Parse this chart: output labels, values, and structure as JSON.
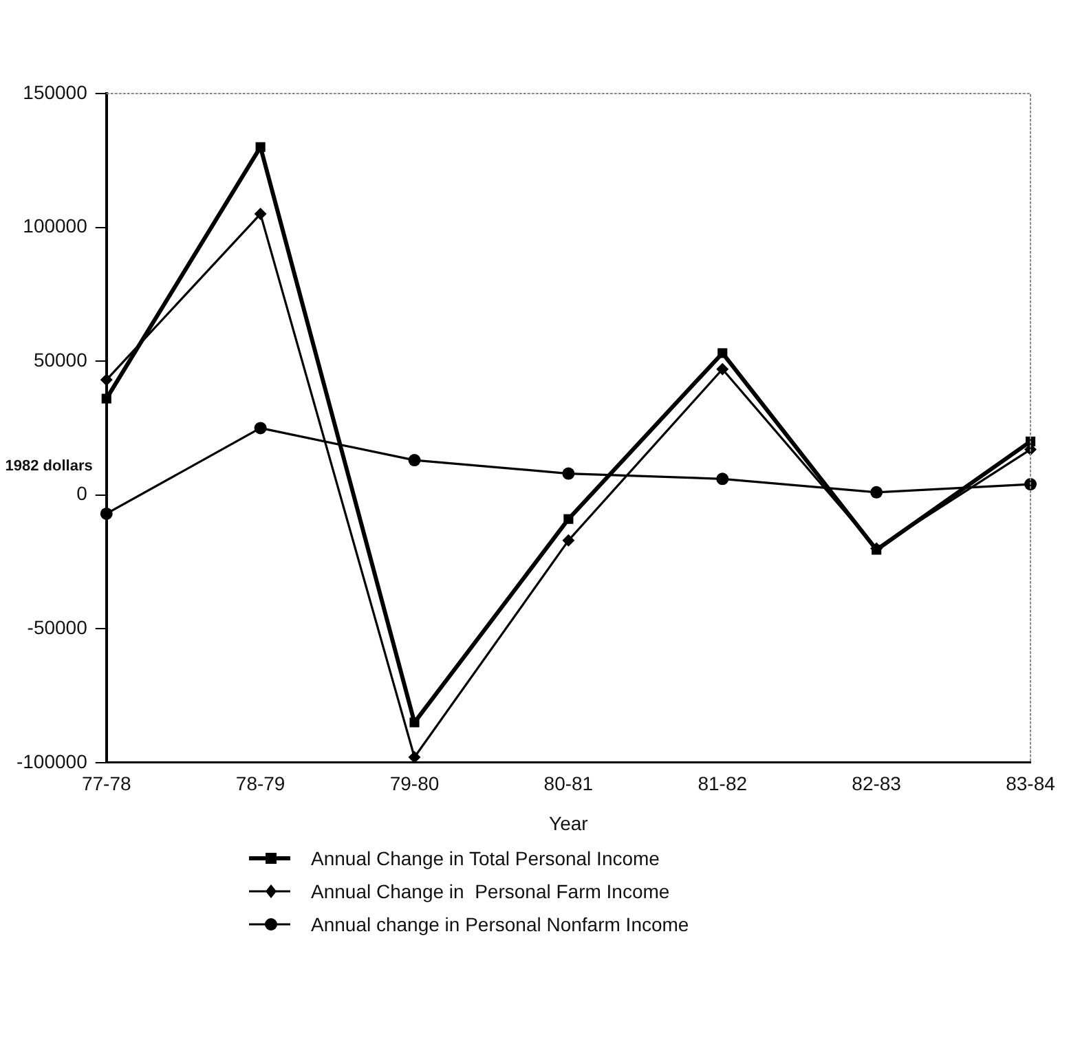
{
  "chart_data": {
    "type": "line",
    "xlabel": "Year",
    "ylabel": "1982 dollars",
    "categories": [
      "77-78",
      "78-79",
      "79-80",
      "80-81",
      "81-82",
      "82-83",
      "83-84"
    ],
    "series": [
      {
        "name": "Annual Change in Total Personal Income",
        "color": "#000000",
        "marker": "square",
        "values": [
          36000,
          130000,
          -85000,
          -9000,
          53000,
          -20500,
          20000
        ]
      },
      {
        "name": "Annual Change in  Personal Farm Income",
        "color": "#000000",
        "marker": "diamond",
        "values": [
          43000,
          105000,
          -98000,
          -17000,
          47000,
          -20000,
          17000
        ]
      },
      {
        "name": "Annual change in Personal Nonfarm Income",
        "color": "#000000",
        "marker": "circle",
        "values": [
          -7000,
          25000,
          13000,
          8000,
          6000,
          1000,
          4000
        ]
      }
    ],
    "ylim": [
      -100000,
      150000
    ],
    "yticks": [
      -100000,
      -50000,
      0,
      50000,
      100000,
      150000
    ],
    "grid": false,
    "legend": "bottom",
    "line_style": "solid"
  }
}
